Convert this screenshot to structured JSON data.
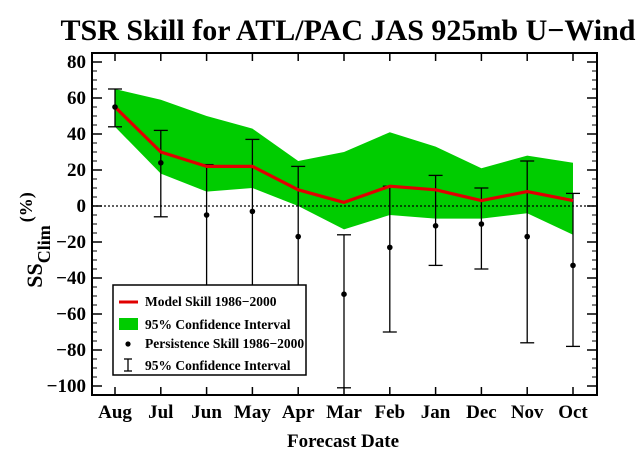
{
  "chart_data": {
    "type": "line",
    "title": "TSR Skill for ATL/PAC JAS 925mb U−Wind",
    "xlabel": "Forecast Date",
    "ylabel": {
      "main": "SS",
      "sub": "Clim",
      "unit": "(%)"
    },
    "categories": [
      "Aug",
      "Jul",
      "Jun",
      "May",
      "Apr",
      "Mar",
      "Feb",
      "Jan",
      "Dec",
      "Nov",
      "Oct"
    ],
    "ylim": [
      -105,
      85
    ],
    "yticks": [
      -100,
      -80,
      -60,
      -40,
      -20,
      0,
      20,
      40,
      60,
      80
    ],
    "zero_line": true,
    "legend_position": "bottom-left",
    "series": [
      {
        "name": "Model Skill 1986−2000",
        "kind": "line",
        "color": "#e00000",
        "values": [
          55,
          30,
          22,
          22,
          9,
          2,
          11,
          9,
          3,
          8,
          3
        ]
      },
      {
        "name": "95% Confidence Interval",
        "kind": "band",
        "color": "#00cc00",
        "upper": [
          65,
          59,
          50,
          43,
          25,
          30,
          41,
          33,
          21,
          28,
          24
        ],
        "lower": [
          44,
          18,
          8,
          10,
          0,
          -13,
          -5,
          -7,
          -7,
          -4,
          -16
        ]
      },
      {
        "name": "Persistence Skill 1986−2000",
        "kind": "points",
        "color": "#000000",
        "values": [
          55,
          24,
          -5,
          -3,
          -17,
          -49,
          -23,
          -11,
          -10,
          -17,
          -33
        ]
      },
      {
        "name": "95% Confidence Interval",
        "kind": "errorbars",
        "color": "#000000",
        "upper": [
          65,
          42,
          23,
          37,
          22,
          -16,
          11,
          17,
          10,
          25,
          7
        ],
        "lower": [
          44,
          -6,
          -60,
          -53,
          -55,
          -101,
          -70,
          -33,
          -35,
          -76,
          -78
        ]
      }
    ]
  }
}
